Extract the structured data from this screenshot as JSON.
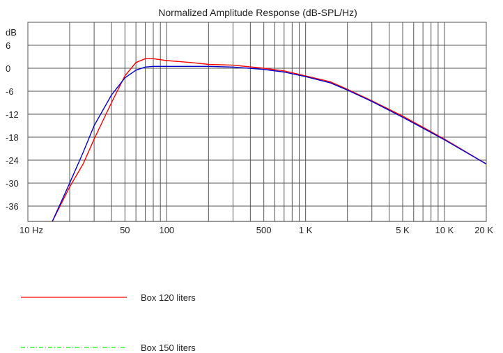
{
  "chart_data": {
    "type": "line",
    "title": "Normalized Amplitude Response (dB-SPL/Hz)",
    "xscale": "log",
    "xlim": [
      10,
      20000
    ],
    "ylim": [
      -40,
      12
    ],
    "ytick_unit": "dB",
    "yticks": [
      6,
      0,
      -6,
      -12,
      -18,
      -24,
      -30,
      -36
    ],
    "xticks": [
      {
        "value": 10,
        "label": "10 Hz"
      },
      {
        "value": 50,
        "label": "50"
      },
      {
        "value": 100,
        "label": "100"
      },
      {
        "value": 500,
        "label": "500"
      },
      {
        "value": 1000,
        "label": "1 K"
      },
      {
        "value": 5000,
        "label": "5 K"
      },
      {
        "value": 10000,
        "label": "10 K"
      },
      {
        "value": 20000,
        "label": "20 K"
      }
    ],
    "grid": true,
    "legend_position": "bottom-left",
    "series": [
      {
        "name": "Box 120 liters",
        "color": "#ff0000",
        "style": "solid",
        "x": [
          15,
          20,
          25,
          30,
          40,
          50,
          60,
          70,
          80,
          100,
          150,
          200,
          300,
          500,
          700,
          1000,
          1500,
          2000,
          3000,
          5000,
          10000,
          20000
        ],
        "y": [
          -40,
          -31,
          -25,
          -18.5,
          -9,
          -2,
          1.5,
          2.5,
          2.5,
          2.0,
          1.5,
          1.0,
          0.8,
          0,
          -0.7,
          -2,
          -3.5,
          -5.5,
          -8.5,
          -12.5,
          -18.5,
          -25
        ]
      },
      {
        "name": "Box 150 liters",
        "color": "#00ff00",
        "style": "dashdot",
        "x": [],
        "y": []
      },
      {
        "name": "",
        "color": "#0000cc",
        "style": "solid",
        "x": [
          15,
          20,
          25,
          30,
          40,
          50,
          60,
          70,
          80,
          100,
          150,
          200,
          300,
          500,
          700,
          1000,
          1500,
          2000,
          3000,
          5000,
          10000,
          20000
        ],
        "y": [
          -40,
          -30,
          -22,
          -15,
          -7,
          -2.5,
          -0.5,
          0.3,
          0.5,
          0.5,
          0.5,
          0.5,
          0.3,
          -0.3,
          -1,
          -2.2,
          -3.8,
          -5.7,
          -8.7,
          -12.8,
          -18.7,
          -25
        ]
      }
    ]
  }
}
